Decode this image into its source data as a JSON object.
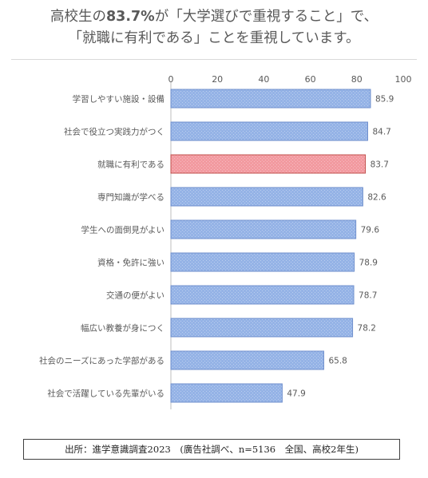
{
  "title": {
    "line1_pre": "高校生の",
    "line1_highlight": "83.7%",
    "line1_post": "が「大学選びで重視すること」で、",
    "line2": "「就職に有利である」ことを重視しています。"
  },
  "chart_data": {
    "type": "bar",
    "orientation": "horizontal",
    "categories": [
      "学習しやすい施設・設備",
      "社会で役立つ実践力がつく",
      "就職に有利である",
      "専門知識が学べる",
      "学生への面倒見がよい",
      "資格・免許に強い",
      "交通の便がよい",
      "幅広い教養が身につく",
      "社会のニーズにあった学部がある",
      "社会で活躍している先輩がいる"
    ],
    "values": [
      85.9,
      84.7,
      83.7,
      82.6,
      79.6,
      78.9,
      78.7,
      78.2,
      65.8,
      47.9
    ],
    "value_labels": [
      "85.9",
      "84.7",
      "83.7",
      "82.6",
      "79.6",
      "78.9",
      "78.7",
      "78.2",
      "65.8",
      "47.9"
    ],
    "highlight_index": 2,
    "xlim": [
      0,
      100
    ],
    "xticks": [
      "0",
      "20",
      "40",
      "60",
      "80",
      "100"
    ],
    "grid": false,
    "colors": {
      "bar": "#95b3e6",
      "bar_edge": "#6f8fcc",
      "highlight": "#f29aa0",
      "highlight_edge": "#c0504d"
    }
  },
  "source": "出所：進学意識調査2023　(廣告社調べ、n=5136　全国、高校2年生)"
}
